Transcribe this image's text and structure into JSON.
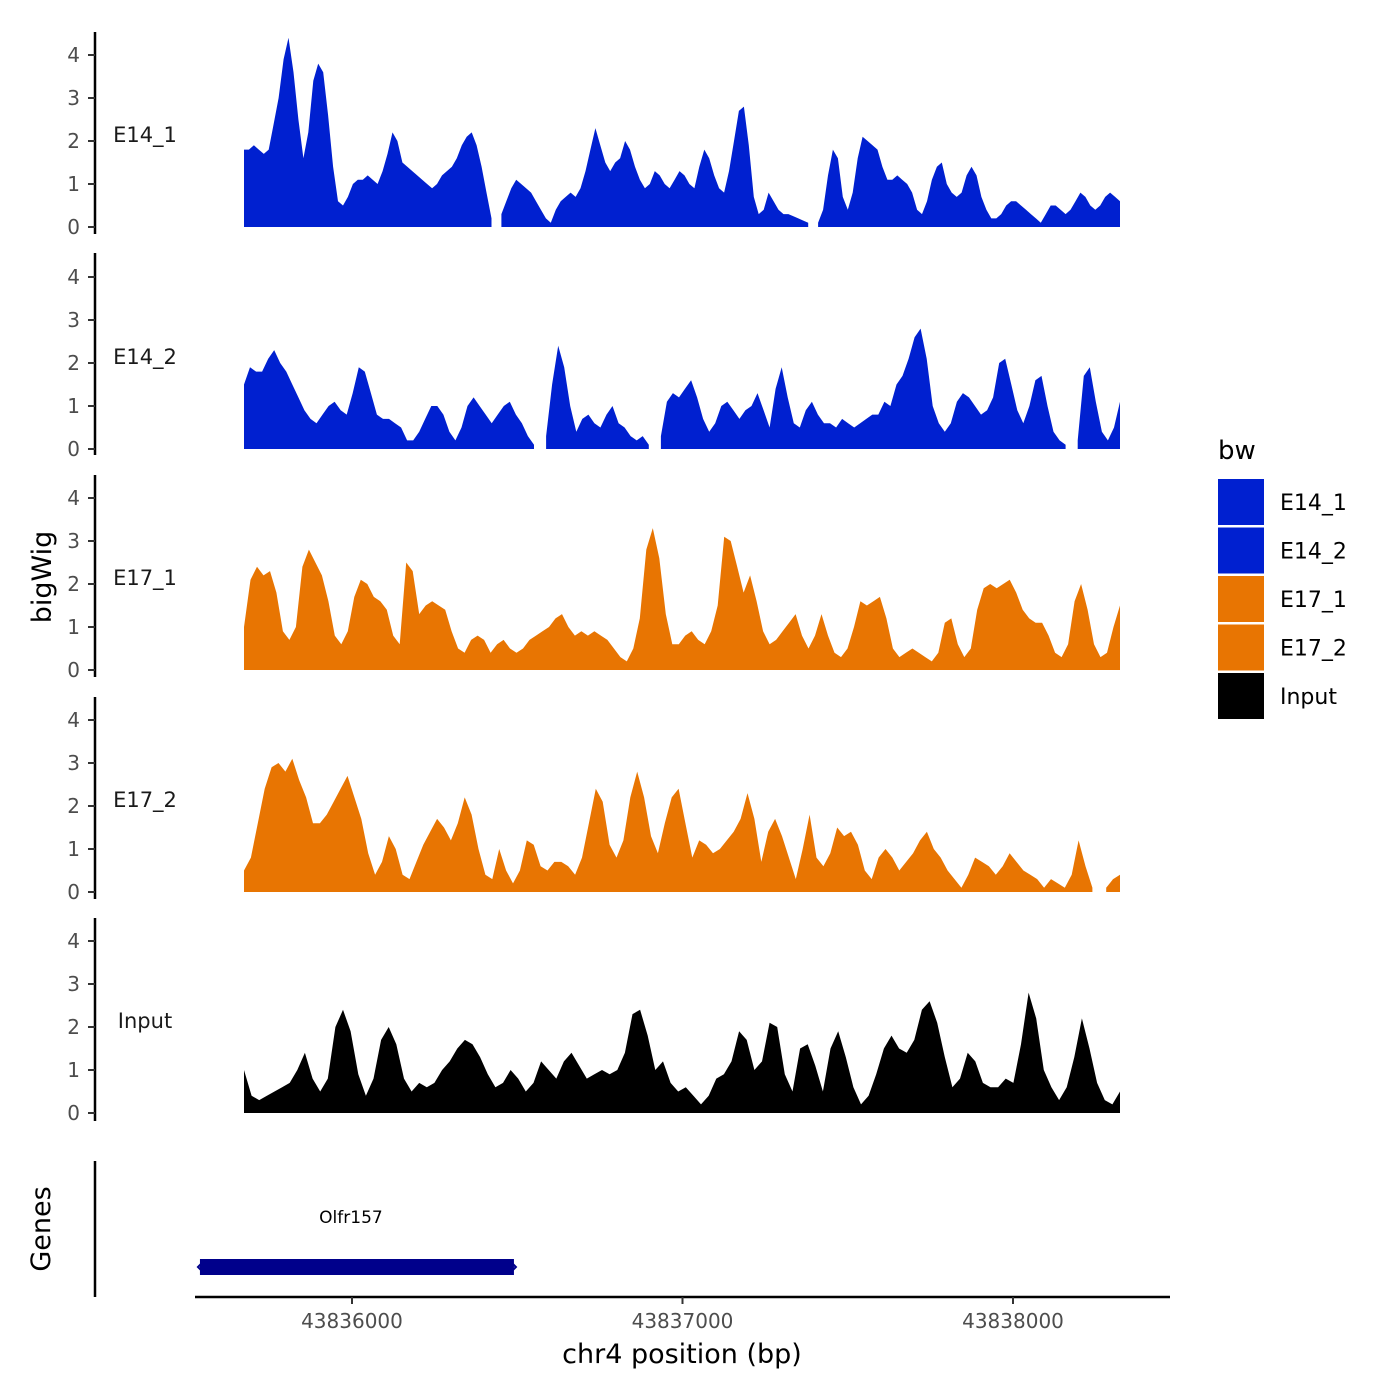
{
  "chart_data": {
    "type": "area",
    "ylabel": "bigWig",
    "xlabel": "chr4 position (bp)",
    "genes_label": "Genes",
    "x_range": [
      43835525,
      43838475
    ],
    "x_ticks": [
      43836000,
      43837000,
      43838000
    ],
    "x_tick_labels": [
      "43836000",
      "43837000",
      "43838000"
    ],
    "ylim": [
      0,
      4.5
    ],
    "y_ticks": [
      0,
      1,
      2,
      3,
      4
    ],
    "y_tick_labels": [
      "0",
      "1",
      "2",
      "3",
      "4"
    ],
    "legend": {
      "title": "bw",
      "entries": [
        {
          "label": "E14_1",
          "color": "#0020D0"
        },
        {
          "label": "E14_2",
          "color": "#0020D0"
        },
        {
          "label": "E17_1",
          "color": "#E87502"
        },
        {
          "label": "E17_2",
          "color": "#E87502"
        },
        {
          "label": "Input",
          "color": "#000000"
        }
      ]
    },
    "series": [
      {
        "name": "E14_1",
        "color": "#0020D0",
        "values": [
          1.8,
          1.8,
          1.9,
          1.8,
          1.7,
          1.8,
          2.4,
          3.0,
          3.9,
          4.4,
          3.6,
          2.5,
          1.6,
          2.2,
          3.4,
          3.8,
          3.6,
          2.6,
          1.4,
          0.6,
          0.5,
          0.7,
          1.0,
          1.1,
          1.1,
          1.2,
          1.1,
          1.0,
          1.3,
          1.7,
          2.2,
          2.0,
          1.5,
          1.4,
          1.3,
          1.2,
          1.1,
          1.0,
          0.9,
          1.0,
          1.2,
          1.3,
          1.4,
          1.6,
          1.9,
          2.1,
          2.2,
          1.9,
          1.4,
          0.8,
          0.2,
          null,
          0.3,
          0.6,
          0.9,
          1.1,
          1.0,
          0.9,
          0.8,
          0.6,
          0.4,
          0.2,
          0.1,
          0.4,
          0.6,
          0.7,
          0.8,
          0.7,
          0.9,
          1.3,
          1.8,
          2.3,
          1.9,
          1.5,
          1.3,
          1.5,
          1.6,
          2.0,
          1.8,
          1.4,
          1.1,
          0.9,
          1.0,
          1.3,
          1.2,
          1.0,
          0.9,
          1.1,
          1.3,
          1.2,
          1.0,
          0.9,
          1.4,
          1.8,
          1.6,
          1.2,
          0.9,
          0.8,
          1.3,
          2.0,
          2.7,
          2.8,
          1.9,
          0.7,
          0.3,
          0.4,
          0.8,
          0.6,
          0.4,
          0.3,
          0.3,
          0.25,
          0.2,
          0.15,
          0.1,
          null,
          0.1,
          0.4,
          1.2,
          1.8,
          1.6,
          0.7,
          0.4,
          0.8,
          1.6,
          2.1,
          2.0,
          1.9,
          1.8,
          1.4,
          1.1,
          1.1,
          1.2,
          1.1,
          1.0,
          0.8,
          0.4,
          0.3,
          0.6,
          1.1,
          1.4,
          1.5,
          1.0,
          0.8,
          0.7,
          0.8,
          1.2,
          1.4,
          1.2,
          0.7,
          0.4,
          0.2,
          0.2,
          0.3,
          0.5,
          0.6,
          0.6,
          0.5,
          0.4,
          0.3,
          0.2,
          0.1,
          0.3,
          0.5,
          0.5,
          0.4,
          0.3,
          0.4,
          0.6,
          0.8,
          0.7,
          0.5,
          0.4,
          0.5,
          0.7,
          0.8,
          0.7,
          0.6
        ]
      },
      {
        "name": "E14_2",
        "color": "#0020D0",
        "values": [
          1.5,
          1.9,
          1.8,
          1.8,
          2.1,
          2.3,
          2.0,
          1.8,
          1.5,
          1.2,
          0.9,
          0.7,
          0.6,
          0.8,
          1.0,
          1.1,
          0.9,
          0.8,
          1.3,
          1.9,
          1.8,
          1.3,
          0.8,
          0.7,
          0.7,
          0.6,
          0.5,
          0.2,
          0.2,
          0.4,
          0.7,
          1.0,
          1.0,
          0.8,
          0.4,
          0.2,
          0.5,
          1.0,
          1.2,
          1.0,
          0.8,
          0.6,
          0.8,
          1.0,
          1.1,
          0.8,
          0.6,
          0.3,
          0.1,
          null,
          0.3,
          1.5,
          2.4,
          1.9,
          1.0,
          0.4,
          0.7,
          0.8,
          0.6,
          0.5,
          0.8,
          1.0,
          0.6,
          0.5,
          0.3,
          0.2,
          0.3,
          0.1,
          null,
          0.3,
          1.1,
          1.3,
          1.2,
          1.4,
          1.6,
          1.2,
          0.7,
          0.4,
          0.6,
          1.0,
          1.1,
          0.9,
          0.7,
          0.9,
          1.0,
          1.3,
          0.9,
          0.5,
          1.4,
          1.9,
          1.2,
          0.6,
          0.5,
          0.9,
          1.1,
          0.8,
          0.6,
          0.6,
          0.5,
          0.7,
          0.6,
          0.5,
          0.6,
          0.7,
          0.8,
          0.8,
          1.1,
          1.0,
          1.5,
          1.7,
          2.1,
          2.6,
          2.8,
          2.1,
          1.0,
          0.6,
          0.4,
          0.6,
          1.1,
          1.3,
          1.2,
          1.0,
          0.8,
          0.9,
          1.2,
          2.0,
          2.1,
          1.5,
          0.9,
          0.6,
          1.0,
          1.6,
          1.7,
          1.0,
          0.4,
          0.2,
          0.1,
          null,
          0.2,
          1.7,
          1.9,
          1.1,
          0.4,
          0.2,
          0.5,
          1.1
        ]
      },
      {
        "name": "E17_1",
        "color": "#E87502",
        "values": [
          1.0,
          2.1,
          2.4,
          2.2,
          2.3,
          1.8,
          0.9,
          0.7,
          1.0,
          2.4,
          2.8,
          2.5,
          2.2,
          1.6,
          0.8,
          0.6,
          0.9,
          1.7,
          2.1,
          2.0,
          1.7,
          1.6,
          1.4,
          0.8,
          0.6,
          2.5,
          2.3,
          1.3,
          1.5,
          1.6,
          1.5,
          1.4,
          0.9,
          0.5,
          0.4,
          0.7,
          0.8,
          0.7,
          0.4,
          0.6,
          0.7,
          0.5,
          0.4,
          0.5,
          0.7,
          0.8,
          0.9,
          1.0,
          1.2,
          1.3,
          1.0,
          0.8,
          0.9,
          0.8,
          0.9,
          0.8,
          0.7,
          0.5,
          0.3,
          0.2,
          0.5,
          1.2,
          2.8,
          3.3,
          2.6,
          1.3,
          0.6,
          0.6,
          0.8,
          0.9,
          0.7,
          0.6,
          0.9,
          1.5,
          3.1,
          3.0,
          2.4,
          1.8,
          2.2,
          1.6,
          0.9,
          0.6,
          0.7,
          0.9,
          1.1,
          1.3,
          0.8,
          0.5,
          0.8,
          1.3,
          0.8,
          0.4,
          0.3,
          0.5,
          1.0,
          1.6,
          1.5,
          1.6,
          1.7,
          1.2,
          0.5,
          0.3,
          0.4,
          0.5,
          0.4,
          0.3,
          0.2,
          0.4,
          1.1,
          1.2,
          0.6,
          0.3,
          0.5,
          1.4,
          1.9,
          2.0,
          1.9,
          2.0,
          2.1,
          1.8,
          1.4,
          1.2,
          1.1,
          1.1,
          0.8,
          0.4,
          0.3,
          0.6,
          1.6,
          2.0,
          1.4,
          0.6,
          0.3,
          0.4,
          1.0,
          1.5
        ]
      },
      {
        "name": "E17_2",
        "color": "#E87502",
        "values": [
          0.5,
          0.8,
          1.6,
          2.4,
          2.9,
          3.0,
          2.8,
          3.1,
          2.6,
          2.2,
          1.6,
          1.6,
          1.8,
          2.1,
          2.4,
          2.7,
          2.2,
          1.7,
          0.9,
          0.4,
          0.7,
          1.3,
          1.0,
          0.4,
          0.3,
          0.7,
          1.1,
          1.4,
          1.7,
          1.5,
          1.2,
          1.6,
          2.2,
          1.8,
          1.0,
          0.4,
          0.3,
          1.0,
          0.5,
          0.2,
          0.5,
          1.2,
          1.1,
          0.6,
          0.5,
          0.7,
          0.7,
          0.6,
          0.4,
          0.8,
          1.6,
          2.4,
          2.1,
          1.1,
          0.8,
          1.2,
          2.2,
          2.8,
          2.2,
          1.3,
          0.9,
          1.6,
          2.2,
          2.4,
          1.6,
          0.8,
          1.2,
          1.1,
          0.9,
          1.0,
          1.2,
          1.4,
          1.7,
          2.3,
          1.7,
          0.7,
          1.4,
          1.7,
          1.3,
          0.8,
          0.3,
          1.0,
          1.8,
          0.8,
          0.6,
          0.9,
          1.5,
          1.3,
          1.4,
          1.1,
          0.5,
          0.3,
          0.8,
          1.0,
          0.8,
          0.5,
          0.7,
          0.9,
          1.2,
          1.4,
          1.0,
          0.8,
          0.5,
          0.3,
          0.1,
          0.4,
          0.8,
          0.7,
          0.6,
          0.4,
          0.6,
          0.9,
          0.7,
          0.5,
          0.4,
          0.3,
          0.1,
          0.3,
          0.2,
          0.1,
          0.4,
          1.2,
          0.6,
          0.1,
          null,
          0.1,
          0.3,
          0.4
        ]
      },
      {
        "name": "Input",
        "color": "#000000",
        "values": [
          1.0,
          0.4,
          0.3,
          0.4,
          0.5,
          0.6,
          0.7,
          1.0,
          1.4,
          0.8,
          0.5,
          0.8,
          2.0,
          2.4,
          1.9,
          0.9,
          0.4,
          0.8,
          1.7,
          2.0,
          1.6,
          0.8,
          0.5,
          0.7,
          0.6,
          0.7,
          1.0,
          1.2,
          1.5,
          1.7,
          1.6,
          1.3,
          0.9,
          0.6,
          0.7,
          1.0,
          0.8,
          0.5,
          0.7,
          1.2,
          1.0,
          0.8,
          1.2,
          1.4,
          1.1,
          0.8,
          0.9,
          1.0,
          0.9,
          1.0,
          1.4,
          2.3,
          2.4,
          1.8,
          1.0,
          1.2,
          0.7,
          0.5,
          0.6,
          0.4,
          0.2,
          0.4,
          0.8,
          0.9,
          1.2,
          1.9,
          1.7,
          1.0,
          1.2,
          2.1,
          2.0,
          0.9,
          0.5,
          1.5,
          1.6,
          1.1,
          0.5,
          1.5,
          1.9,
          1.3,
          0.6,
          0.2,
          0.4,
          0.9,
          1.5,
          1.8,
          1.5,
          1.4,
          1.7,
          2.4,
          2.6,
          2.1,
          1.3,
          0.6,
          0.8,
          1.4,
          1.2,
          0.7,
          0.6,
          0.6,
          0.8,
          0.7,
          1.6,
          2.8,
          2.2,
          1.0,
          0.6,
          0.3,
          0.6,
          1.3,
          2.2,
          1.5,
          0.7,
          0.3,
          0.2,
          0.5
        ]
      }
    ],
    "genes": [
      {
        "name": "Olfr157",
        "start": 43835540,
        "end": 43836490,
        "color": "#00008B"
      }
    ]
  }
}
